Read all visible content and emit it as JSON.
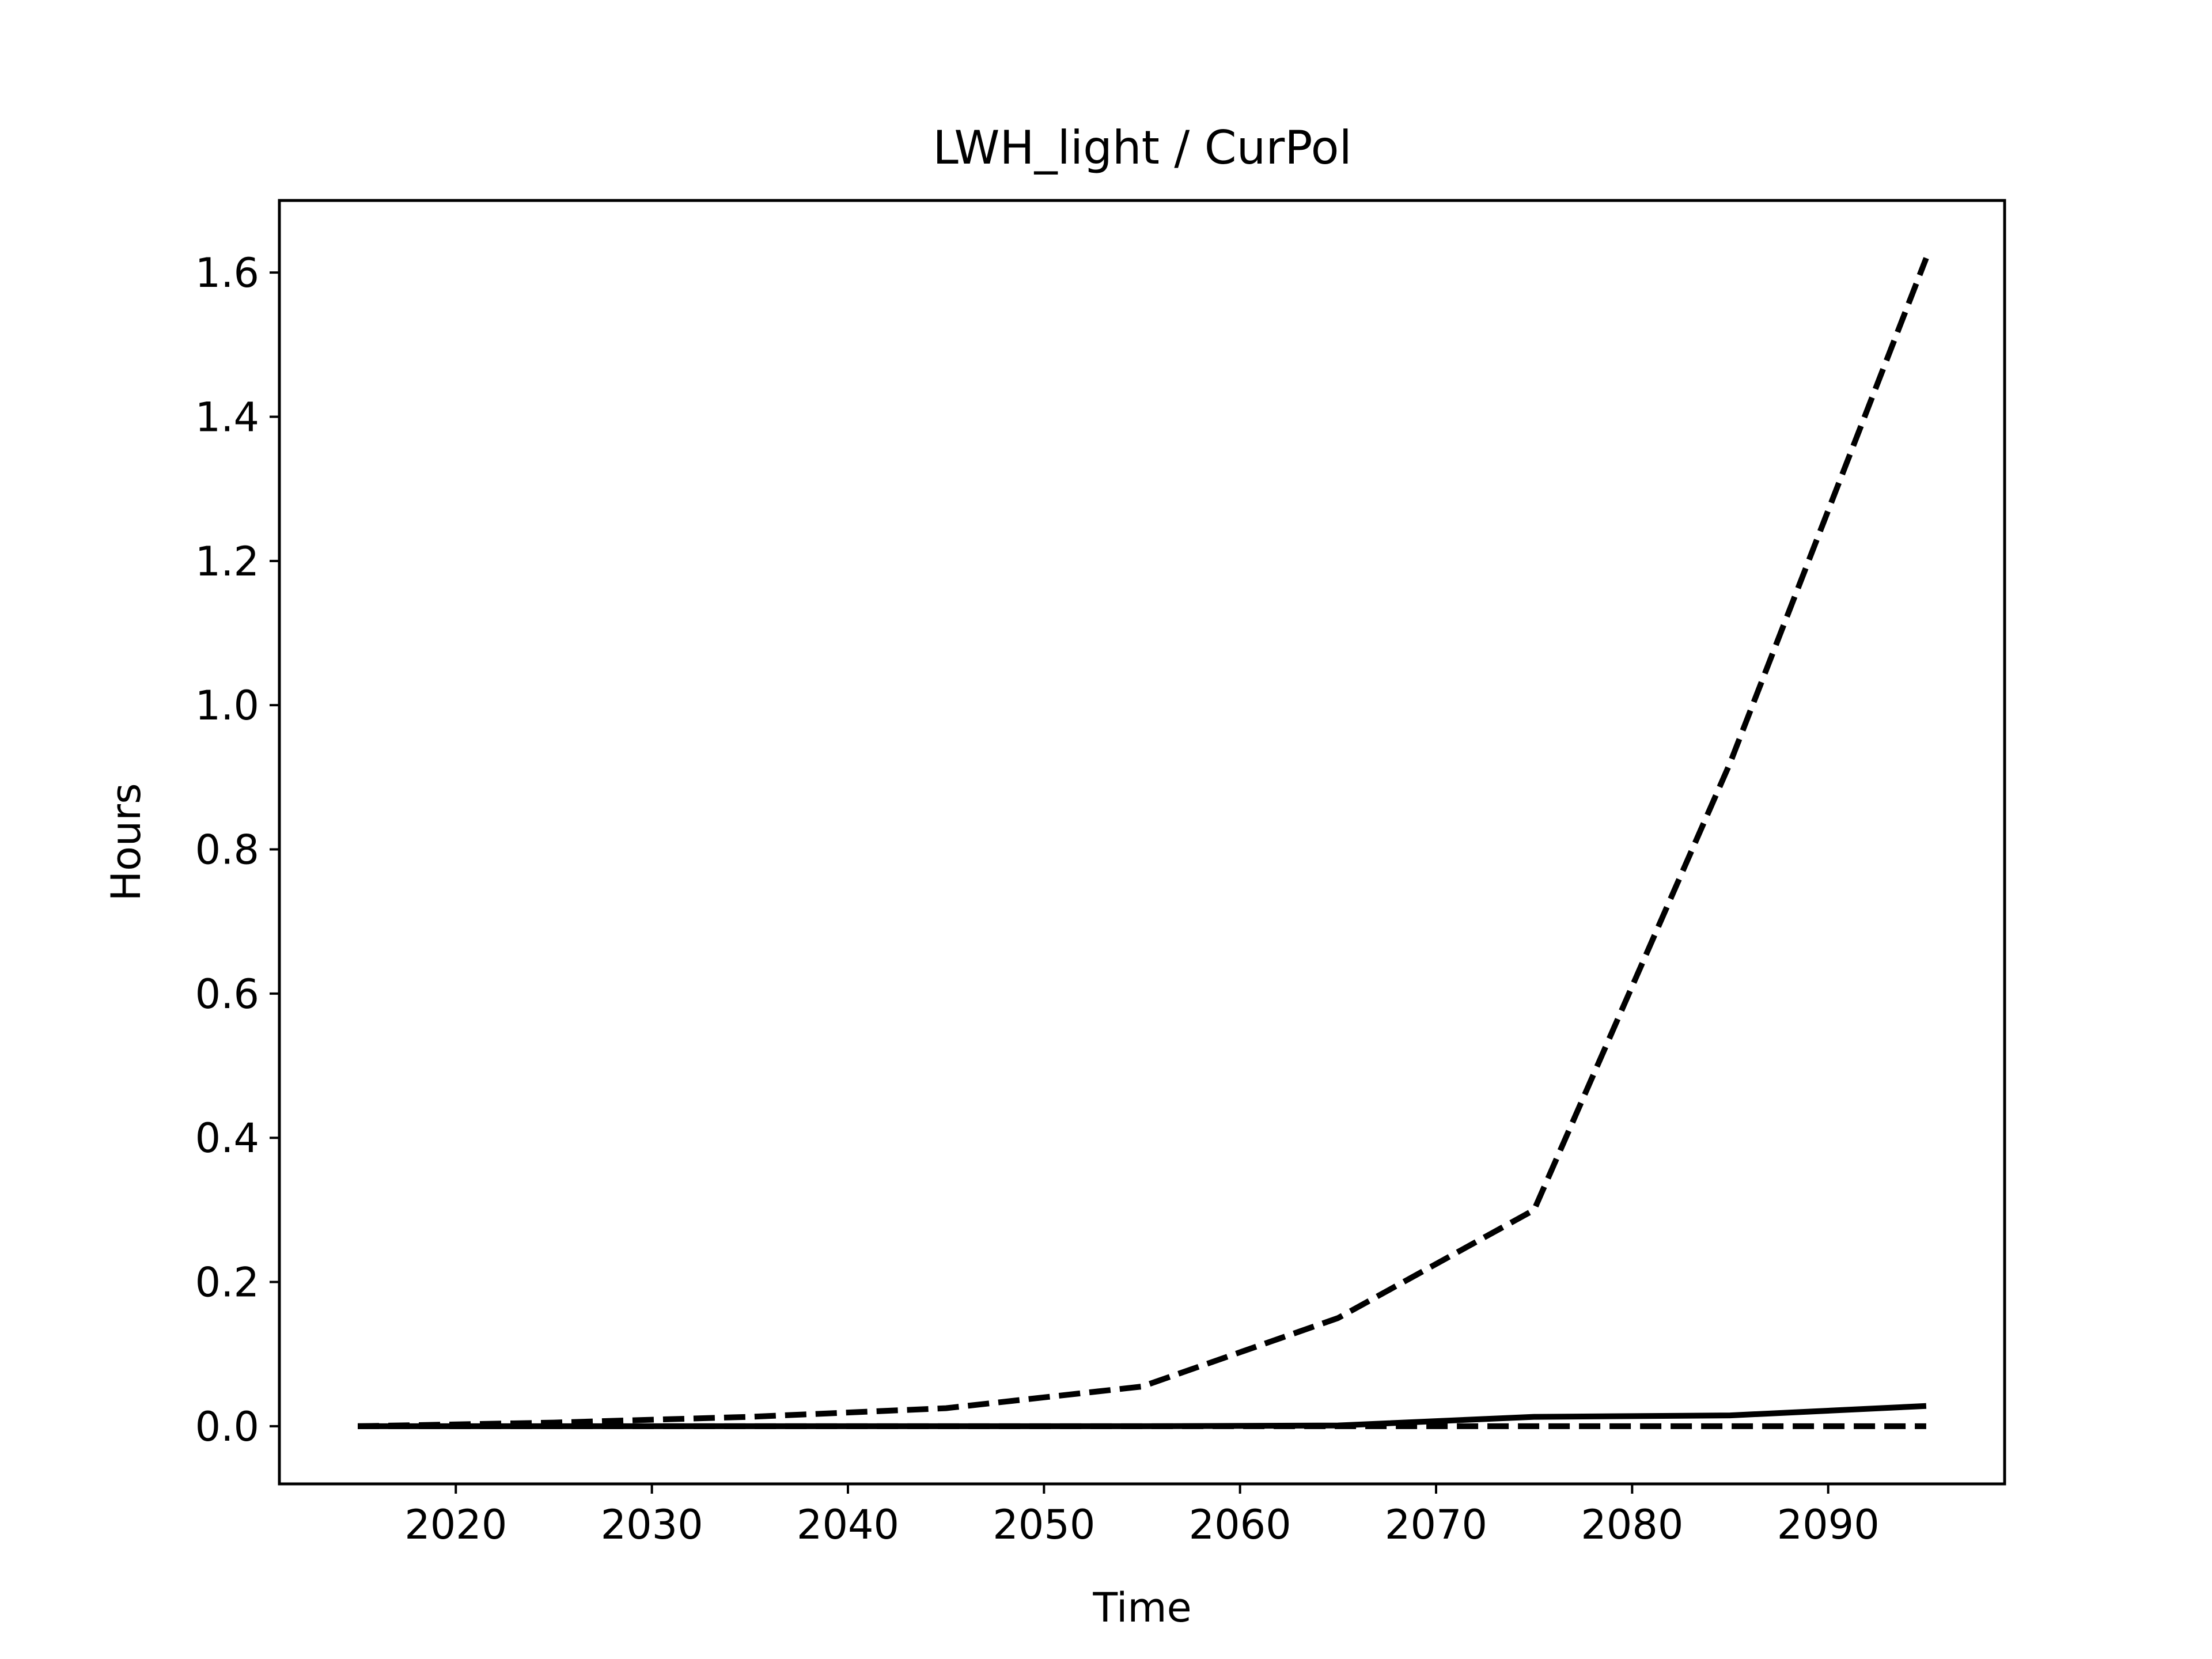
{
  "chart_data": {
    "type": "line",
    "title": "LWH_light / CurPol",
    "xlabel": "Time",
    "ylabel": "Hours",
    "xlim": [
      2011,
      2099
    ],
    "ylim": [
      -0.08,
      1.7
    ],
    "xticks": [
      2020,
      2030,
      2040,
      2050,
      2060,
      2070,
      2080,
      2090
    ],
    "yticks": [
      0.0,
      0.2,
      0.4,
      0.6,
      0.8,
      1.0,
      1.2,
      1.4,
      1.6
    ],
    "ytick_labels": [
      "0.0",
      "0.2",
      "0.4",
      "0.6",
      "0.8",
      "1.0",
      "1.2",
      "1.4",
      "1.6"
    ],
    "grid": false,
    "legend": "none",
    "x": [
      2015,
      2025,
      2035,
      2045,
      2055,
      2065,
      2075,
      2085,
      2095
    ],
    "series": [
      {
        "style": "dashed",
        "color": "#000000",
        "values": [
          0.0,
          0.005,
          0.013,
          0.025,
          0.055,
          0.15,
          0.3,
          0.92,
          1.62
        ]
      },
      {
        "style": "solid",
        "color": "#000000",
        "values": [
          0.0,
          0.0,
          0.0,
          0.0,
          0.0,
          0.001,
          0.013,
          0.015,
          0.028
        ]
      },
      {
        "style": "dashed",
        "color": "#000000",
        "values": [
          0.0,
          0.0,
          0.0,
          0.0,
          0.0,
          0.0,
          0.0,
          0.0,
          0.0
        ]
      }
    ]
  }
}
